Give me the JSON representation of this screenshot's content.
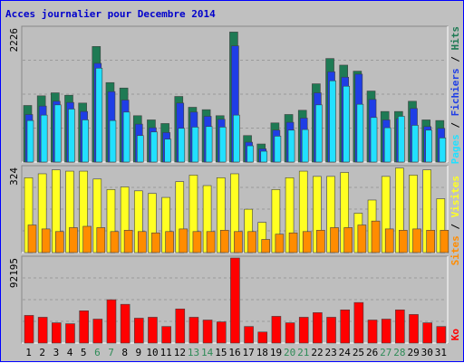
{
  "title": "Acces journalier pour Decembre 2014",
  "legend": {
    "pages": "Pages",
    "fichiers": "Fichiers",
    "hits": "Hits",
    "sites": "Sites",
    "visites": "Visites",
    "ko": "Ko",
    "sep": " / "
  },
  "colors": {
    "hits": "#1e7a54",
    "fichiers": "#1f3ee6",
    "pages": "#22e0ff",
    "visites": "#ffff22",
    "sites": "#ff8c00",
    "ko": "#ff0000",
    "weekend_label": "#2e8b57",
    "weekday_label": "#000000",
    "axis_label": "#000000"
  },
  "chart_data": [
    {
      "type": "bar",
      "title": "Acces journalier pour Decembre 2014",
      "ymax_label": "2226",
      "ylim": [
        0,
        2226
      ],
      "categories": [
        "1",
        "2",
        "3",
        "4",
        "5",
        "6",
        "7",
        "8",
        "9",
        "10",
        "11",
        "12",
        "13",
        "14",
        "15",
        "16",
        "17",
        "18",
        "19",
        "20",
        "21",
        "22",
        "23",
        "24",
        "25",
        "26",
        "27",
        "28",
        "29",
        "30",
        "31"
      ],
      "weekend_days": [
        6,
        7,
        13,
        14,
        20,
        21,
        27,
        28
      ],
      "series": [
        {
          "name": "Hits",
          "values": [
            940,
            1100,
            1150,
            1110,
            980,
            1920,
            1320,
            1230,
            770,
            700,
            640,
            1090,
            910,
            870,
            770,
            2160,
            440,
            300,
            650,
            790,
            860,
            1300,
            1720,
            1610,
            1510,
            1180,
            840,
            840,
            1010,
            700,
            690
          ]
        },
        {
          "name": "Fichiers",
          "values": [
            790,
            930,
            1010,
            990,
            840,
            1640,
            1170,
            1030,
            630,
            570,
            490,
            980,
            830,
            760,
            710,
            1930,
            330,
            220,
            530,
            660,
            730,
            1150,
            1500,
            1410,
            1460,
            1040,
            700,
            720,
            890,
            590,
            560
          ]
        },
        {
          "name": "Pages",
          "values": [
            690,
            780,
            950,
            880,
            700,
            1560,
            690,
            830,
            440,
            500,
            380,
            560,
            580,
            590,
            580,
            780,
            270,
            180,
            430,
            530,
            540,
            950,
            1350,
            1260,
            960,
            740,
            570,
            760,
            610,
            530,
            400
          ]
        }
      ]
    },
    {
      "type": "bar",
      "ymax_label": "324",
      "ylim": [
        0,
        324
      ],
      "categories": [
        "1",
        "2",
        "3",
        "4",
        "5",
        "6",
        "7",
        "8",
        "9",
        "10",
        "11",
        "12",
        "13",
        "14",
        "15",
        "16",
        "17",
        "18",
        "19",
        "20",
        "21",
        "22",
        "23",
        "24",
        "25",
        "26",
        "27",
        "28",
        "29",
        "30",
        "31"
      ],
      "series": [
        {
          "name": "Visites",
          "values": [
            285,
            300,
            315,
            310,
            310,
            280,
            240,
            250,
            235,
            225,
            210,
            270,
            295,
            255,
            285,
            300,
            165,
            115,
            240,
            285,
            310,
            290,
            290,
            305,
            150,
            200,
            290,
            322,
            295,
            315,
            205
          ]
        },
        {
          "name": "Sites",
          "values": [
            105,
            90,
            80,
            95,
            100,
            95,
            80,
            85,
            80,
            75,
            80,
            90,
            80,
            80,
            85,
            80,
            80,
            50,
            70,
            75,
            80,
            85,
            95,
            95,
            105,
            120,
            90,
            85,
            90,
            85,
            85
          ]
        }
      ]
    },
    {
      "type": "bar",
      "ymax_label": "92195",
      "ylim": [
        0,
        92195
      ],
      "categories": [
        "1",
        "2",
        "3",
        "4",
        "5",
        "6",
        "7",
        "8",
        "9",
        "10",
        "11",
        "12",
        "13",
        "14",
        "15",
        "16",
        "17",
        "18",
        "19",
        "20",
        "21",
        "22",
        "23",
        "24",
        "25",
        "26",
        "27",
        "28",
        "29",
        "30",
        "31"
      ],
      "series": [
        {
          "name": "Ko",
          "values": [
            30000,
            28000,
            22000,
            21000,
            35000,
            26000,
            47000,
            42000,
            27000,
            28000,
            18000,
            37000,
            28000,
            25000,
            23000,
            92195,
            18000,
            12000,
            29000,
            22000,
            28000,
            33000,
            28000,
            36000,
            44000,
            25000,
            26000,
            36000,
            31000,
            22000,
            18000
          ]
        }
      ]
    }
  ]
}
